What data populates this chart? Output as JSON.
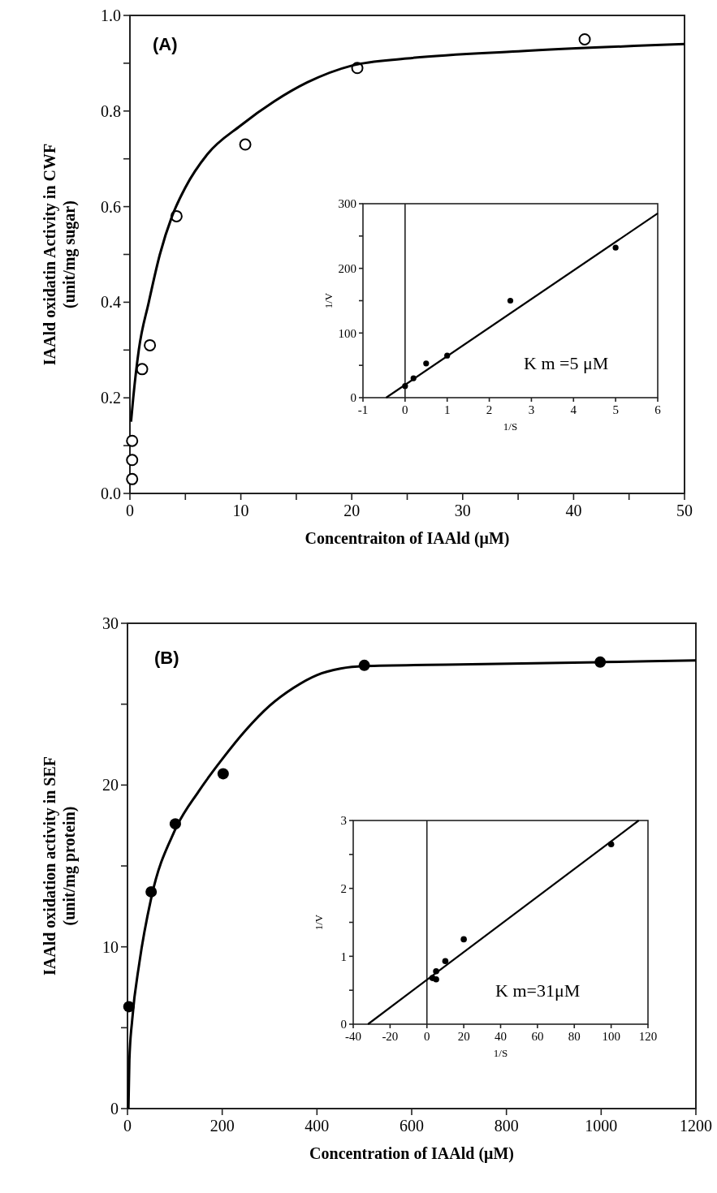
{
  "chart_data": [
    {
      "type": "scatter",
      "xlabel": "Concentraiton of IAAld (μM)",
      "ylabel": "IAAld oxidatin Activity in CWF\n(unit/mg sugar)",
      "annotations": [
        "(A)"
      ],
      "xlim": [
        0,
        50
      ],
      "ylim": [
        0,
        1.0
      ],
      "xticks": [
        0,
        {
          "value": 5,
          "label": null
        },
        10,
        {
          "value": 15,
          "label": null
        },
        20,
        {
          "value": 25,
          "label": null
        },
        30,
        {
          "value": 35,
          "label": null
        },
        40,
        {
          "value": 45,
          "label": null
        },
        50
      ],
      "yticks": [
        {
          "value": 0,
          "label": "0.0"
        },
        {
          "value": 0.1,
          "label": null
        },
        0.2,
        {
          "value": 0.3,
          "label": null
        },
        0.4,
        {
          "value": 0.5,
          "label": null
        },
        0.6,
        {
          "value": 0.7,
          "label": null
        },
        0.8,
        {
          "value": 0.9,
          "label": null
        },
        {
          "value": 1,
          "label": "1.0"
        }
      ],
      "grid": false,
      "series": [
        {
          "color": "#000000",
          "marker": "circle",
          "x": [
            0.2,
            0.2,
            0.2,
            1.1,
            1.8,
            4.2,
            10.4,
            20.5,
            41
          ],
          "values": [
            0.03,
            0.07,
            0.11,
            0.26,
            0.31,
            0.58,
            0.73,
            0.89,
            0.95
          ]
        },
        {
          "type": "line",
          "color": "#000000",
          "x": [
            0.1,
            0.3,
            0.8,
            1.7,
            2.7,
            3.8,
            5,
            7,
            10,
            13,
            16,
            20,
            25,
            35,
            50
          ],
          "values": [
            0.15,
            0.2,
            0.3,
            0.4,
            0.5,
            0.58,
            0.64,
            0.71,
            0.77,
            0.82,
            0.86,
            0.895,
            0.91,
            0.925,
            0.94
          ]
        }
      ]
    },
    {
      "type": "scatter",
      "xlabel": "1/S",
      "ylabel": "1/V",
      "annotations": [
        "K m =5 μM"
      ],
      "xlim": [
        -1,
        6
      ],
      "ylim": [
        0,
        300
      ],
      "xticks": [
        -1,
        0,
        1,
        2,
        3,
        4,
        5,
        6
      ],
      "yticks": [
        0,
        {
          "value": 50,
          "label": null
        },
        100,
        {
          "value": 150,
          "label": null
        },
        200,
        {
          "value": 250,
          "label": null
        },
        300
      ],
      "grid": false,
      "ref_lines": [
        {
          "axis": "x",
          "value": 0
        }
      ],
      "series": [
        {
          "color": "#000000",
          "marker": "circle",
          "x": [
            0,
            0.2,
            0.5,
            1,
            2.5,
            5
          ],
          "values": [
            18,
            30,
            53,
            65,
            150,
            232
          ]
        },
        {
          "type": "line",
          "color": "#000000",
          "x": [
            -0.45,
            6
          ],
          "values": [
            0,
            285
          ]
        }
      ]
    },
    {
      "type": "scatter",
      "xlabel": "Concentration of IAAld (μM)",
      "ylabel": "IAAld oxidation activity in SEF\n(unit/mg protein)",
      "annotations": [
        "(B)"
      ],
      "xlim": [
        0,
        1200
      ],
      "ylim": [
        0,
        30
      ],
      "xticks": [
        0,
        200,
        400,
        600,
        800,
        1000,
        1200
      ],
      "yticks": [
        0,
        {
          "value": 5,
          "label": null
        },
        10,
        {
          "value": 15,
          "label": null
        },
        20,
        {
          "value": 25,
          "label": null
        },
        30
      ],
      "grid": false,
      "series": [
        {
          "color": "#000000",
          "marker": "circle",
          "x": [
            3,
            50,
            101,
            202,
            500,
            998
          ],
          "values": [
            6.3,
            13.4,
            17.6,
            20.7,
            27.4,
            27.6
          ]
        },
        {
          "type": "line",
          "color": "#000000",
          "x": [
            2,
            4,
            10,
            25,
            50,
            100,
            150,
            200,
            250,
            300,
            350,
            400,
            450,
            500,
            700,
            1000,
            1200
          ],
          "values": [
            0,
            3,
            5.5,
            9,
            13,
            17.2,
            19.6,
            21.6,
            23.4,
            24.9,
            26,
            26.8,
            27.2,
            27.35,
            27.45,
            27.6,
            27.7
          ]
        }
      ]
    },
    {
      "type": "scatter",
      "xlabel": "1/S",
      "ylabel": "1/V",
      "annotations": [
        "K m=31μM"
      ],
      "xlim": [
        -40,
        120
      ],
      "ylim": [
        0,
        3
      ],
      "xticks": [
        -40,
        -20,
        0,
        20,
        40,
        60,
        80,
        100,
        120
      ],
      "yticks": [
        0,
        {
          "value": 0.5,
          "label": null
        },
        1,
        {
          "value": 1.5,
          "label": null
        },
        2,
        {
          "value": 2.5,
          "label": null
        },
        3
      ],
      "grid": false,
      "ref_lines": [
        {
          "axis": "x",
          "value": 0
        }
      ],
      "series": [
        {
          "color": "#000000",
          "marker": "circle",
          "x": [
            3,
            5,
            5,
            10,
            20,
            100
          ],
          "values": [
            0.68,
            0.66,
            0.78,
            0.93,
            1.25,
            2.65
          ]
        },
        {
          "type": "line",
          "color": "#000000",
          "x": [
            -32,
            115
          ],
          "values": [
            0,
            3
          ]
        }
      ]
    }
  ]
}
